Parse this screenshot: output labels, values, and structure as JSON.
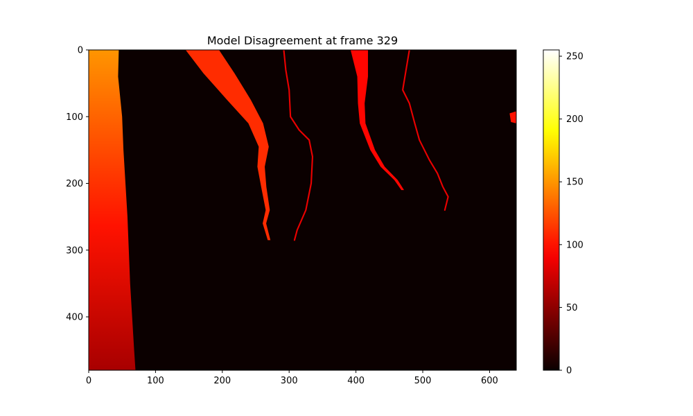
{
  "chart_data": {
    "type": "heatmap",
    "title": "Model Disagreement at frame 329",
    "xlabel": "",
    "ylabel": "",
    "xlim": [
      0,
      640
    ],
    "ylim": [
      480,
      0
    ],
    "x_ticks": [
      0,
      100,
      200,
      300,
      400,
      500,
      600
    ],
    "y_ticks": [
      0,
      100,
      200,
      300,
      400
    ],
    "colormap": "hot",
    "colorbar": {
      "range": [
        0,
        255
      ],
      "ticks": [
        0,
        50,
        100,
        150,
        200,
        250
      ]
    },
    "grid": false,
    "features": [
      {
        "name": "left-edge-band",
        "value_range": [
          60,
          150
        ],
        "left_x": 0,
        "boundary": [
          [
            45,
            0
          ],
          [
            44,
            40
          ],
          [
            50,
            100
          ],
          [
            52,
            150
          ],
          [
            55,
            200
          ],
          [
            58,
            250
          ],
          [
            60,
            300
          ],
          [
            62,
            350
          ],
          [
            65,
            400
          ],
          [
            68,
            450
          ],
          [
            70,
            480
          ]
        ]
      },
      {
        "name": "streak-a",
        "value": 110,
        "centerline": [
          [
            170,
            0
          ],
          [
            195,
            35
          ],
          [
            225,
            75
          ],
          [
            250,
            110
          ],
          [
            262,
            145
          ],
          [
            258,
            175
          ],
          [
            262,
            205
          ],
          [
            268,
            240
          ],
          [
            263,
            260
          ],
          [
            270,
            285
          ]
        ],
        "width": [
          [
            0,
            50
          ],
          [
            40,
            46
          ],
          [
            80,
            34
          ],
          [
            110,
            22
          ],
          [
            150,
            14
          ],
          [
            200,
            8
          ],
          [
            285,
            4
          ]
        ]
      },
      {
        "name": "streak-b",
        "value": 95,
        "centerline": [
          [
            405,
            0
          ],
          [
            410,
            40
          ],
          [
            408,
            80
          ],
          [
            410,
            110
          ],
          [
            425,
            150
          ],
          [
            440,
            175
          ],
          [
            460,
            195
          ],
          [
            470,
            210
          ]
        ],
        "width": [
          [
            0,
            26
          ],
          [
            40,
            16
          ],
          [
            80,
            10
          ],
          [
            120,
            8
          ],
          [
            180,
            6
          ],
          [
            210,
            4
          ]
        ]
      },
      {
        "name": "thin-line-1",
        "value": 85,
        "width": 2.2,
        "centerline": [
          [
            292,
            0
          ],
          [
            295,
            30
          ],
          [
            300,
            60
          ],
          [
            302,
            100
          ],
          [
            315,
            120
          ],
          [
            330,
            135
          ],
          [
            335,
            160
          ],
          [
            333,
            200
          ],
          [
            325,
            240
          ],
          [
            312,
            270
          ],
          [
            308,
            285
          ]
        ]
      },
      {
        "name": "thin-line-2",
        "value": 85,
        "width": 2.2,
        "centerline": [
          [
            480,
            0
          ],
          [
            475,
            30
          ],
          [
            470,
            60
          ],
          [
            480,
            80
          ],
          [
            488,
            110
          ],
          [
            495,
            135
          ],
          [
            510,
            165
          ],
          [
            522,
            185
          ],
          [
            530,
            205
          ],
          [
            538,
            220
          ],
          [
            533,
            240
          ]
        ]
      },
      {
        "name": "right-edge-spot",
        "value": 100,
        "points": [
          [
            630,
            95
          ],
          [
            632,
            108
          ],
          [
            640,
            110
          ],
          [
            640,
            92
          ]
        ]
      }
    ]
  }
}
